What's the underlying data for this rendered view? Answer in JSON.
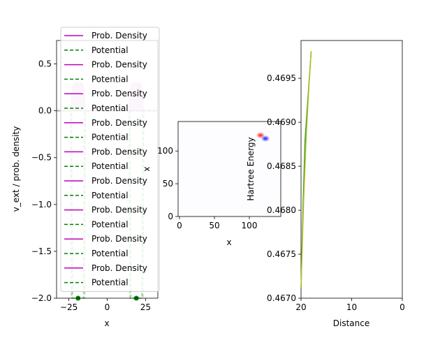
{
  "chart_data": [
    {
      "type": "line",
      "xlabel": "x",
      "ylabel": "v_ext / prob. density",
      "xlim": [
        -33,
        33
      ],
      "ylim": [
        -2.0,
        0.75
      ],
      "x_ticks": [
        -25,
        0,
        25
      ],
      "x_tick_labels": [
        "−25",
        "0",
        "25"
      ],
      "y_ticks": [
        0.5,
        0.0,
        -0.5,
        -1.0,
        -1.5,
        -2.0
      ],
      "y_tick_labels": [
        "0.5",
        "0.0",
        "−0.5",
        "−1.0",
        "−1.5",
        "−2.0"
      ],
      "legend_placement": "top-left",
      "legend": [
        {
          "label": "Prob. Density",
          "style": "solid",
          "color": "#bf00bf"
        },
        {
          "label": "Potential",
          "style": "dashed",
          "color": "#008000"
        },
        {
          "label": "Prob. Density",
          "style": "solid",
          "color": "#bf00bf"
        },
        {
          "label": "Potential",
          "style": "dashed",
          "color": "#008000"
        },
        {
          "label": "Prob. Density",
          "style": "solid",
          "color": "#bf00bf"
        },
        {
          "label": "Potential",
          "style": "dashed",
          "color": "#008000"
        },
        {
          "label": "Prob. Density",
          "style": "solid",
          "color": "#bf00bf"
        },
        {
          "label": "Potential",
          "style": "dashed",
          "color": "#008000"
        },
        {
          "label": "Prob. Density",
          "style": "solid",
          "color": "#bf00bf"
        },
        {
          "label": "Potential",
          "style": "dashed",
          "color": "#008000"
        },
        {
          "label": "Prob. Density",
          "style": "solid",
          "color": "#bf00bf"
        },
        {
          "label": "Potential",
          "style": "dashed",
          "color": "#008000"
        },
        {
          "label": "Prob. Density",
          "style": "solid",
          "color": "#bf00bf"
        },
        {
          "label": "Potential",
          "style": "dashed",
          "color": "#008000"
        },
        {
          "label": "Prob. Density",
          "style": "solid",
          "color": "#bf00bf"
        },
        {
          "label": "Potential",
          "style": "dashed",
          "color": "#008000"
        },
        {
          "label": "Prob. Density",
          "style": "solid",
          "color": "#bf00bf"
        },
        {
          "label": "Potential",
          "style": "dashed",
          "color": "#008000"
        }
      ],
      "density_peaks": [
        {
          "center": -19,
          "half_width": 4.5,
          "height": 0.3
        },
        {
          "center": 19,
          "half_width": 4.5,
          "height": 0.3
        }
      ],
      "potential_wells": [
        {
          "center": -19,
          "half_width": 4.5,
          "depth": -2.0
        },
        {
          "center": 19,
          "half_width": 4.5,
          "depth": -2.0
        }
      ],
      "nuclei": [
        {
          "x": -19,
          "y": -2.0
        },
        {
          "x": 19,
          "y": -2.0
        }
      ]
    },
    {
      "type": "heatmap",
      "xlabel": "x",
      "ylabel": "x",
      "xlim": [
        -2,
        145
      ],
      "ylim": [
        0,
        145
      ],
      "x_ticks": [
        0,
        50,
        100
      ],
      "y_ticks": [
        0,
        50,
        100
      ],
      "blobs": [
        {
          "x": 116,
          "y": 124,
          "sign": "positive",
          "color": "#ff0000"
        },
        {
          "x": 123,
          "y": 119,
          "sign": "negative",
          "color": "#0000ff"
        }
      ]
    },
    {
      "type": "line",
      "xlabel": "Distance",
      "ylabel": "Hartree Energy",
      "xlim": [
        20,
        0
      ],
      "ylim": [
        0.467,
        0.46993
      ],
      "x_ticks": [
        20,
        10,
        0
      ],
      "y_ticks": [
        0.467,
        0.4675,
        0.468,
        0.4685,
        0.469,
        0.4695
      ],
      "y_tick_labels": [
        "0.4670",
        "0.4675",
        "0.4680",
        "0.4685",
        "0.4690",
        "0.4695"
      ],
      "series": [
        {
          "color": "#2ca02c",
          "x": [
            20.0,
            19.6,
            19.2,
            18.6,
            18.0
          ],
          "y": [
            0.4671,
            0.46805,
            0.4688,
            0.4693,
            0.4698
          ]
        },
        {
          "color": "#bcbd22",
          "x": [
            20.0,
            19.5,
            19.0,
            18.5,
            18.0
          ],
          "y": [
            0.46712,
            0.46807,
            0.46882,
            0.46935,
            0.46981
          ]
        }
      ]
    }
  ]
}
